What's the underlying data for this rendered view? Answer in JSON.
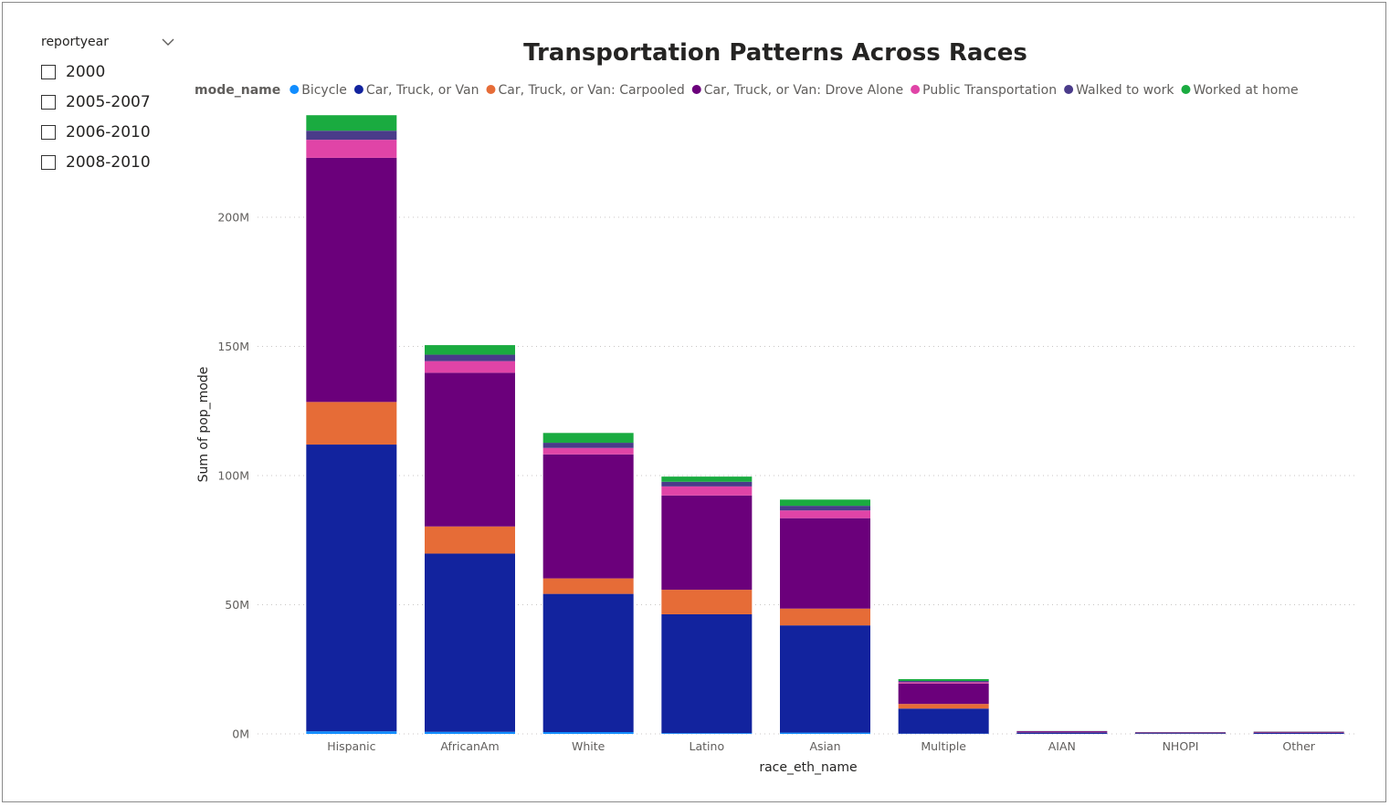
{
  "slicer": {
    "title": "reportyear",
    "chevron_icon": "chevron-down-icon",
    "items": [
      {
        "label": "2000",
        "checked": false
      },
      {
        "label": "2005-2007",
        "checked": false
      },
      {
        "label": "2006-2010",
        "checked": false
      },
      {
        "label": "2008-2010",
        "checked": false
      }
    ]
  },
  "chart_data": {
    "type": "bar",
    "stacked": true,
    "title": "Transportation Patterns Across Races",
    "legend_title": "mode_name",
    "legend_position": "top-left",
    "xlabel": "race_eth_name",
    "ylabel": "Sum of pop_mode",
    "ylim": [
      0,
      240000000
    ],
    "yticks": [
      {
        "value": 0,
        "label": "0M"
      },
      {
        "value": 50000000,
        "label": "50M"
      },
      {
        "value": 100000000,
        "label": "100M"
      },
      {
        "value": 150000000,
        "label": "150M"
      },
      {
        "value": 200000000,
        "label": "200M"
      }
    ],
    "grid": true,
    "categories": [
      "Hispanic",
      "AfricanAm",
      "White",
      "Latino",
      "Asian",
      "Multiple",
      "AIAN",
      "NHOPI",
      "Other"
    ],
    "series": [
      {
        "name": "Bicycle",
        "color": "#118DFF",
        "values": [
          1000000,
          800000,
          700000,
          300000,
          500000,
          100000,
          20000,
          10000,
          20000
        ]
      },
      {
        "name": "Car, Truck, or Van",
        "color": "#12239E",
        "values": [
          111000000,
          69000000,
          53500000,
          46000000,
          41500000,
          9700000,
          500000,
          300000,
          400000
        ]
      },
      {
        "name": "Car, Truck, or Van: Carpooled",
        "color": "#E66C37",
        "values": [
          16500000,
          10500000,
          6000000,
          9500000,
          6500000,
          1800000,
          100000,
          60000,
          80000
        ]
      },
      {
        "name": "Car, Truck, or Van: Drove Alone",
        "color": "#6B007B",
        "values": [
          94500000,
          59500000,
          48000000,
          36500000,
          35000000,
          7900000,
          400000,
          250000,
          300000
        ]
      },
      {
        "name": "Public Transportation",
        "color": "#E044A7",
        "values": [
          7000000,
          4500000,
          2500000,
          3500000,
          3000000,
          500000,
          30000,
          20000,
          30000
        ]
      },
      {
        "name": "Walked to work",
        "color": "#4A3B8A",
        "values": [
          3500000,
          2500000,
          2000000,
          1800000,
          1800000,
          500000,
          30000,
          20000,
          40000
        ]
      },
      {
        "name": "Worked at home",
        "color": "#1AAB40",
        "values": [
          6000000,
          3700000,
          3800000,
          2000000,
          2400000,
          700000,
          40000,
          40000,
          50000
        ]
      }
    ]
  }
}
